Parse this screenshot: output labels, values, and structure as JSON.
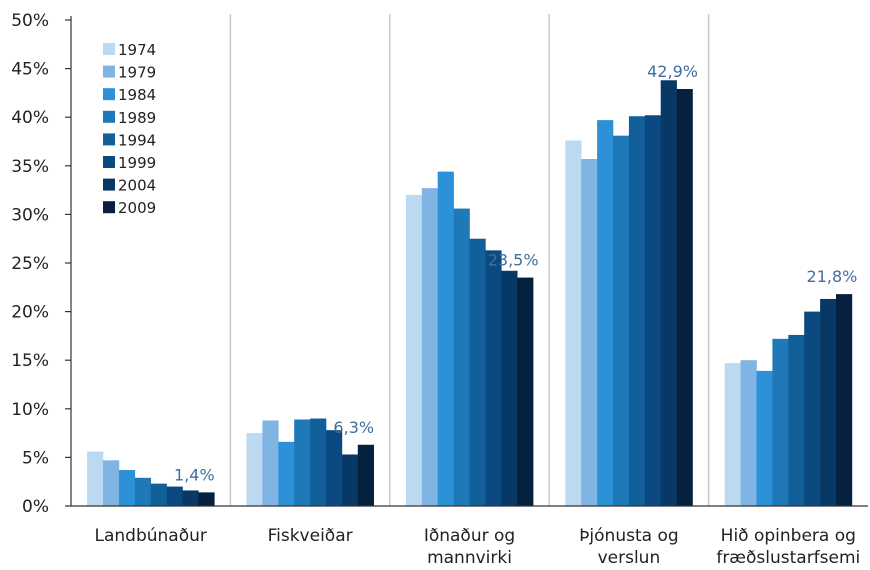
{
  "chart_data": {
    "type": "bar",
    "title": "",
    "xlabel": "",
    "ylabel": "",
    "ylim": [
      0,
      50
    ],
    "y_ticks": [
      "0%",
      "5%",
      "10%",
      "15%",
      "20%",
      "25%",
      "30%",
      "35%",
      "40%",
      "45%",
      "50%"
    ],
    "y_tick_values": [
      0,
      5,
      10,
      15,
      20,
      25,
      30,
      35,
      40,
      45,
      50
    ],
    "grid": "vertical separators between categories",
    "legend_position": "top-left",
    "categories": [
      [
        "Landbúnaður"
      ],
      [
        "Fiskveiðar"
      ],
      [
        "Iðnaður og",
        "mannvirki"
      ],
      [
        "Þjónusta og",
        "verslun"
      ],
      [
        "Hið opinbera og",
        "fræðslustarfsemi"
      ]
    ],
    "series": [
      {
        "name": "1974",
        "color": "#bcd9f2",
        "values": [
          5.6,
          7.5,
          32.0,
          37.6,
          14.7
        ]
      },
      {
        "name": "1979",
        "color": "#80b4e3",
        "values": [
          4.7,
          8.8,
          32.7,
          35.7,
          15.0
        ]
      },
      {
        "name": "1984",
        "color": "#2d91d8",
        "values": [
          3.7,
          6.6,
          34.4,
          39.7,
          13.9
        ]
      },
      {
        "name": "1989",
        "color": "#1f78b8",
        "values": [
          2.9,
          8.9,
          30.6,
          38.1,
          17.2
        ]
      },
      {
        "name": "1994",
        "color": "#126099",
        "values": [
          2.3,
          9.0,
          27.5,
          40.1,
          17.6
        ]
      },
      {
        "name": "1999",
        "color": "#0a4a80",
        "values": [
          2.0,
          7.8,
          26.3,
          40.2,
          20.0
        ]
      },
      {
        "name": "2004",
        "color": "#083865",
        "values": [
          1.6,
          5.3,
          24.2,
          43.8,
          21.3
        ]
      },
      {
        "name": "2009",
        "color": "#06213f",
        "values": [
          1.4,
          6.3,
          23.5,
          42.9,
          21.8
        ]
      }
    ],
    "data_labels": [
      "1,4%",
      "6,3%",
      "23,5%",
      "42,9%",
      "21,8%"
    ]
  }
}
